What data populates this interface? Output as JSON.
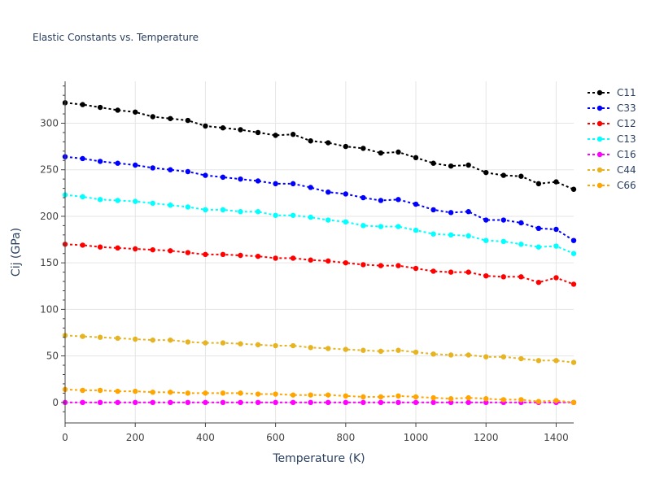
{
  "chart_data": {
    "type": "line",
    "title": "Elastic Constants vs. Temperature",
    "xlabel": "Temperature (K)",
    "ylabel": "Cij (GPa)",
    "xlim": [
      0,
      1450
    ],
    "ylim": [
      -22,
      345
    ],
    "xticks": [
      0,
      200,
      400,
      600,
      800,
      1000,
      1200,
      1400
    ],
    "yticks": [
      0,
      50,
      100,
      150,
      200,
      250,
      300
    ],
    "grid": true,
    "legend_position": "top-right",
    "x": [
      0,
      50,
      100,
      150,
      200,
      250,
      300,
      350,
      400,
      450,
      500,
      550,
      600,
      650,
      700,
      750,
      800,
      850,
      900,
      950,
      1000,
      1050,
      1100,
      1150,
      1200,
      1250,
      1300,
      1350,
      1400,
      1450
    ],
    "series": [
      {
        "name": "C11",
        "color": "#000000",
        "values": [
          322,
          320,
          317,
          314,
          312,
          307,
          305,
          303,
          297,
          295,
          293,
          290,
          287,
          288,
          281,
          279,
          275,
          273,
          268,
          269,
          263,
          257,
          254,
          255,
          247,
          244,
          243,
          235,
          237,
          229
        ]
      },
      {
        "name": "C33",
        "color": "#0000ff",
        "values": [
          264,
          262,
          259,
          257,
          255,
          252,
          250,
          248,
          244,
          242,
          240,
          238,
          235,
          235,
          231,
          226,
          224,
          220,
          217,
          218,
          213,
          207,
          204,
          205,
          196,
          196,
          193,
          187,
          186,
          174
        ]
      },
      {
        "name": "C12",
        "color": "#ff0000",
        "values": [
          170,
          169,
          167,
          166,
          165,
          164,
          163,
          161,
          159,
          159,
          158,
          157,
          155,
          155,
          153,
          152,
          150,
          148,
          147,
          147,
          144,
          141,
          140,
          140,
          136,
          135,
          135,
          129,
          134,
          127
        ]
      },
      {
        "name": "C13",
        "color": "#00ffff",
        "values": [
          223,
          221,
          218,
          217,
          216,
          214,
          212,
          210,
          207,
          207,
          205,
          205,
          201,
          201,
          199,
          196,
          194,
          190,
          189,
          189,
          185,
          181,
          180,
          179,
          174,
          173,
          170,
          167,
          168,
          160
        ]
      },
      {
        "name": "C16",
        "color": "#ff00ff",
        "values": [
          0,
          0,
          0,
          0,
          0,
          0,
          0,
          0,
          0,
          0,
          0,
          0,
          0,
          0,
          0,
          0,
          0,
          0,
          0,
          0,
          0,
          0,
          0,
          0,
          0,
          0,
          0,
          0,
          0,
          0
        ]
      },
      {
        "name": "C44",
        "color": "#e6b422",
        "values": [
          72,
          71,
          70,
          69,
          68,
          67,
          67,
          65,
          64,
          64,
          63,
          62,
          61,
          61,
          59,
          58,
          57,
          56,
          55,
          56,
          54,
          52,
          51,
          51,
          49,
          49,
          47,
          45,
          45,
          43
        ]
      },
      {
        "name": "C66",
        "color": "#ffa500",
        "values": [
          14,
          13,
          13,
          12,
          12,
          11,
          11,
          10,
          10,
          10,
          10,
          9,
          9,
          8,
          8,
          8,
          7,
          6,
          6,
          7,
          6,
          5,
          4,
          5,
          4,
          3,
          3,
          1,
          2,
          0
        ]
      }
    ]
  }
}
